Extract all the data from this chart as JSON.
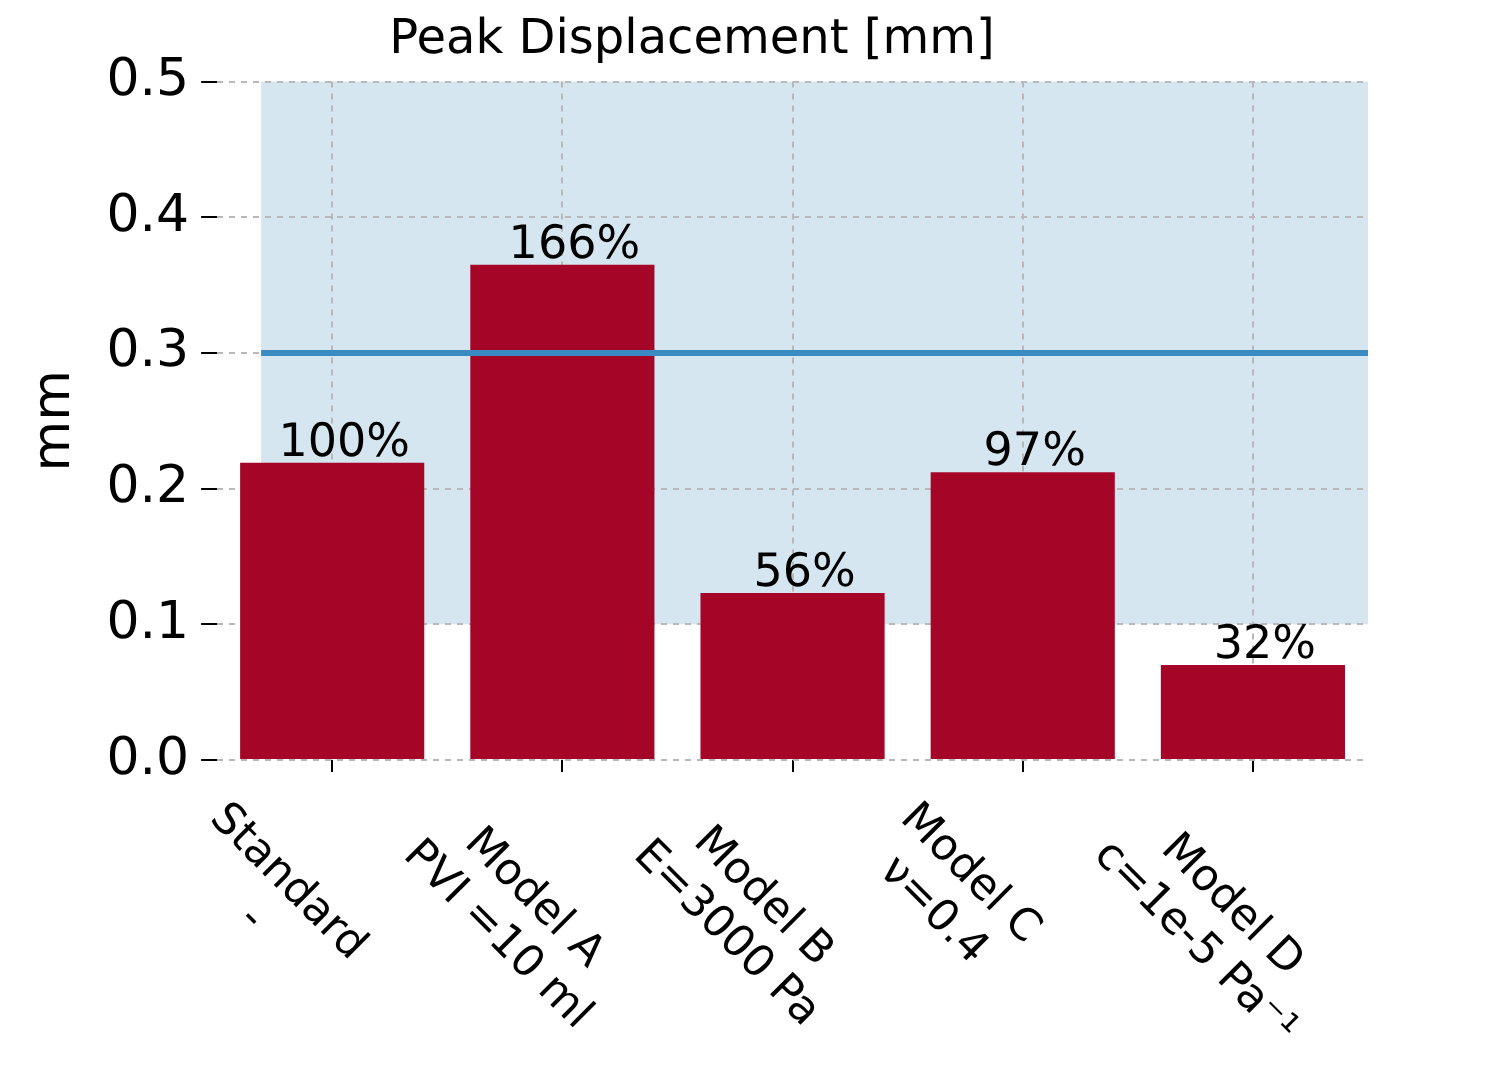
{
  "chart_data": {
    "type": "bar",
    "title": "Peak Displacement [mm]",
    "ylabel": "mm",
    "categories": [
      "Standard\n-",
      "Model A\nPVI =10 ml",
      "Model B\nE=3000 Pa",
      "Model C\nν=0.4",
      "Model D\nc=1e-5 Pa⁻¹"
    ],
    "values": [
      0.219,
      0.365,
      0.123,
      0.212,
      0.07
    ],
    "color": "#a50628",
    "annotations": [
      {
        "text": "100%",
        "x": "Standard\n-",
        "y": 0.219
      },
      {
        "text": "166%",
        "x": "Model A\nPVI =10 ml",
        "y": 0.365
      },
      {
        "text": "56%",
        "x": "Model B\nE=3000 Pa",
        "y": 0.123
      },
      {
        "text": "97%",
        "x": "Model C\nν=0.4",
        "y": 0.212
      },
      {
        "text": "32%",
        "x": "Model D\nc=1e-5 Pa⁻¹",
        "y": 0.07
      }
    ],
    "ylim": [
      0,
      0.5
    ],
    "yticks": [
      {
        "value": 0,
        "label": "0.0"
      },
      {
        "value": 0.1,
        "label": "0.1"
      },
      {
        "value": 0.2,
        "label": "0.2"
      },
      {
        "value": 0.3,
        "label": "0.3"
      },
      {
        "value": 0.4,
        "label": "0.4"
      },
      {
        "value": 0.5,
        "label": "0.5"
      }
    ],
    "ref_lines": [
      {
        "axis": "y",
        "value": 0.3,
        "color": "#3a8bc2"
      }
    ],
    "bands": [
      {
        "axis": "y",
        "from": 0.1,
        "to": 0.5,
        "color": "#d5e6f0"
      }
    ],
    "grid": true
  }
}
